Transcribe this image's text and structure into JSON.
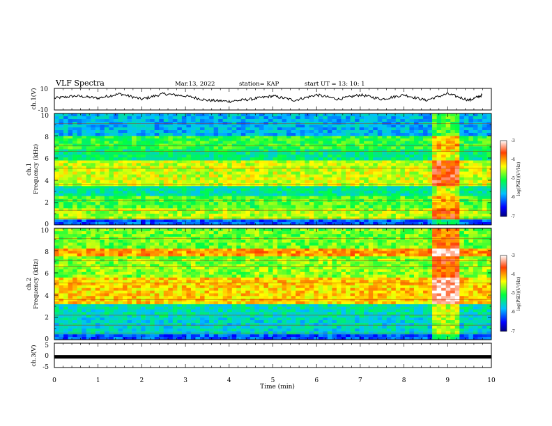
{
  "header": {
    "title": "VLF Spectra",
    "date": "Mar.13, 2022",
    "station": "station= KAP",
    "start": "start  UT =   13: 10: 1"
  },
  "panels": {
    "ch1_wave": {
      "ylabel": "ch.1(V)",
      "ticks": [
        "10",
        "-10"
      ]
    },
    "ch1_spec": {
      "ylabel_top": "ch.1",
      "ylabel_bottom": "Frequency  (kHz)",
      "ticks": [
        "0",
        "2",
        "4",
        "6",
        "8",
        "10"
      ]
    },
    "ch2_spec": {
      "ylabel_top": "ch.2",
      "ylabel_bottom": "Frequency  (kHz)",
      "ticks": [
        "0",
        "2",
        "4",
        "6",
        "8",
        "10"
      ]
    },
    "ch3_wave": {
      "ylabel": "ch.3(V)",
      "ticks": [
        "5",
        "0",
        "-5"
      ]
    }
  },
  "colorbar": {
    "label": "log(PSD)(V²/Hz)",
    "ticks": [
      "-3",
      "-4",
      "-5",
      "-6",
      "-7"
    ]
  },
  "xaxis": {
    "label": "Time  (min)",
    "ticks": [
      "0",
      "1",
      "2",
      "3",
      "4",
      "5",
      "6",
      "7",
      "8",
      "9",
      "10"
    ]
  },
  "chart_data": [
    {
      "type": "line",
      "name": "ch.1 waveform",
      "ylabel": "ch.1(V)",
      "xlim": [
        0,
        10
      ],
      "ylim": [
        -10,
        10
      ],
      "note_values": "oscillating signal roughly between -4 and 6 V with ~1 min period",
      "x": [
        0,
        0.5,
        1,
        1.5,
        2,
        2.5,
        3,
        3.5,
        4,
        4.5,
        5,
        5.5,
        6,
        6.5,
        7,
        7.5,
        8,
        8.5,
        9,
        9.5,
        9.8
      ],
      "y": [
        1,
        3,
        1,
        5,
        0,
        5,
        3,
        -1,
        -2,
        0,
        3,
        -1,
        4,
        0,
        4,
        0,
        4,
        -1,
        5,
        -1,
        4
      ]
    },
    {
      "type": "heatmap",
      "name": "ch.1 spectrogram",
      "ylabel": "Frequency  (kHz)",
      "xlim": [
        0,
        10
      ],
      "ylim": [
        0,
        10
      ],
      "color_range": [
        -7,
        -3
      ],
      "bands_khz": [
        {
          "f_from": 0,
          "f_to": 0.5,
          "level": -6.2
        },
        {
          "f_from": 0.5,
          "f_to": 1.5,
          "level": -4.6
        },
        {
          "f_from": 1.5,
          "f_to": 2.6,
          "level": -4.9
        },
        {
          "f_from": 2.6,
          "f_to": 3.5,
          "level": -5.4
        },
        {
          "f_from": 3.5,
          "f_to": 5.8,
          "level": -4.5
        },
        {
          "f_from": 5.8,
          "f_to": 6.8,
          "level": -5.3
        },
        {
          "f_from": 6.8,
          "f_to": 8.0,
          "level": -5.0
        },
        {
          "f_from": 8.0,
          "f_to": 10.0,
          "level": -5.8
        }
      ],
      "event": {
        "t_from": 8.55,
        "t_to": 9.2,
        "level_delta": 0.9
      }
    },
    {
      "type": "heatmap",
      "name": "ch.2 spectrogram",
      "ylabel": "Frequency  (kHz)",
      "xlim": [
        0,
        10
      ],
      "ylim": [
        0,
        10
      ],
      "color_range": [
        -7,
        -3
      ],
      "bands_khz": [
        {
          "f_from": 0,
          "f_to": 0.5,
          "level": -6.2
        },
        {
          "f_from": 0.5,
          "f_to": 2.0,
          "level": -5.6
        },
        {
          "f_from": 2.0,
          "f_to": 3.2,
          "level": -5.5
        },
        {
          "f_from": 3.2,
          "f_to": 5.6,
          "level": -4.2
        },
        {
          "f_from": 5.6,
          "f_to": 7.5,
          "level": -4.7
        },
        {
          "f_from": 7.5,
          "f_to": 8.2,
          "level": -4.0
        },
        {
          "f_from": 8.2,
          "f_to": 10.0,
          "level": -4.8
        }
      ],
      "event": {
        "t_from": 8.55,
        "t_to": 9.2,
        "level_delta": 1.0
      }
    },
    {
      "type": "line",
      "name": "ch.3 waveform",
      "ylabel": "ch.3(V)",
      "xlim": [
        0,
        10
      ],
      "ylim": [
        -5,
        5
      ],
      "x": [
        0,
        10
      ],
      "y": [
        -0.6,
        -0.6
      ]
    }
  ]
}
